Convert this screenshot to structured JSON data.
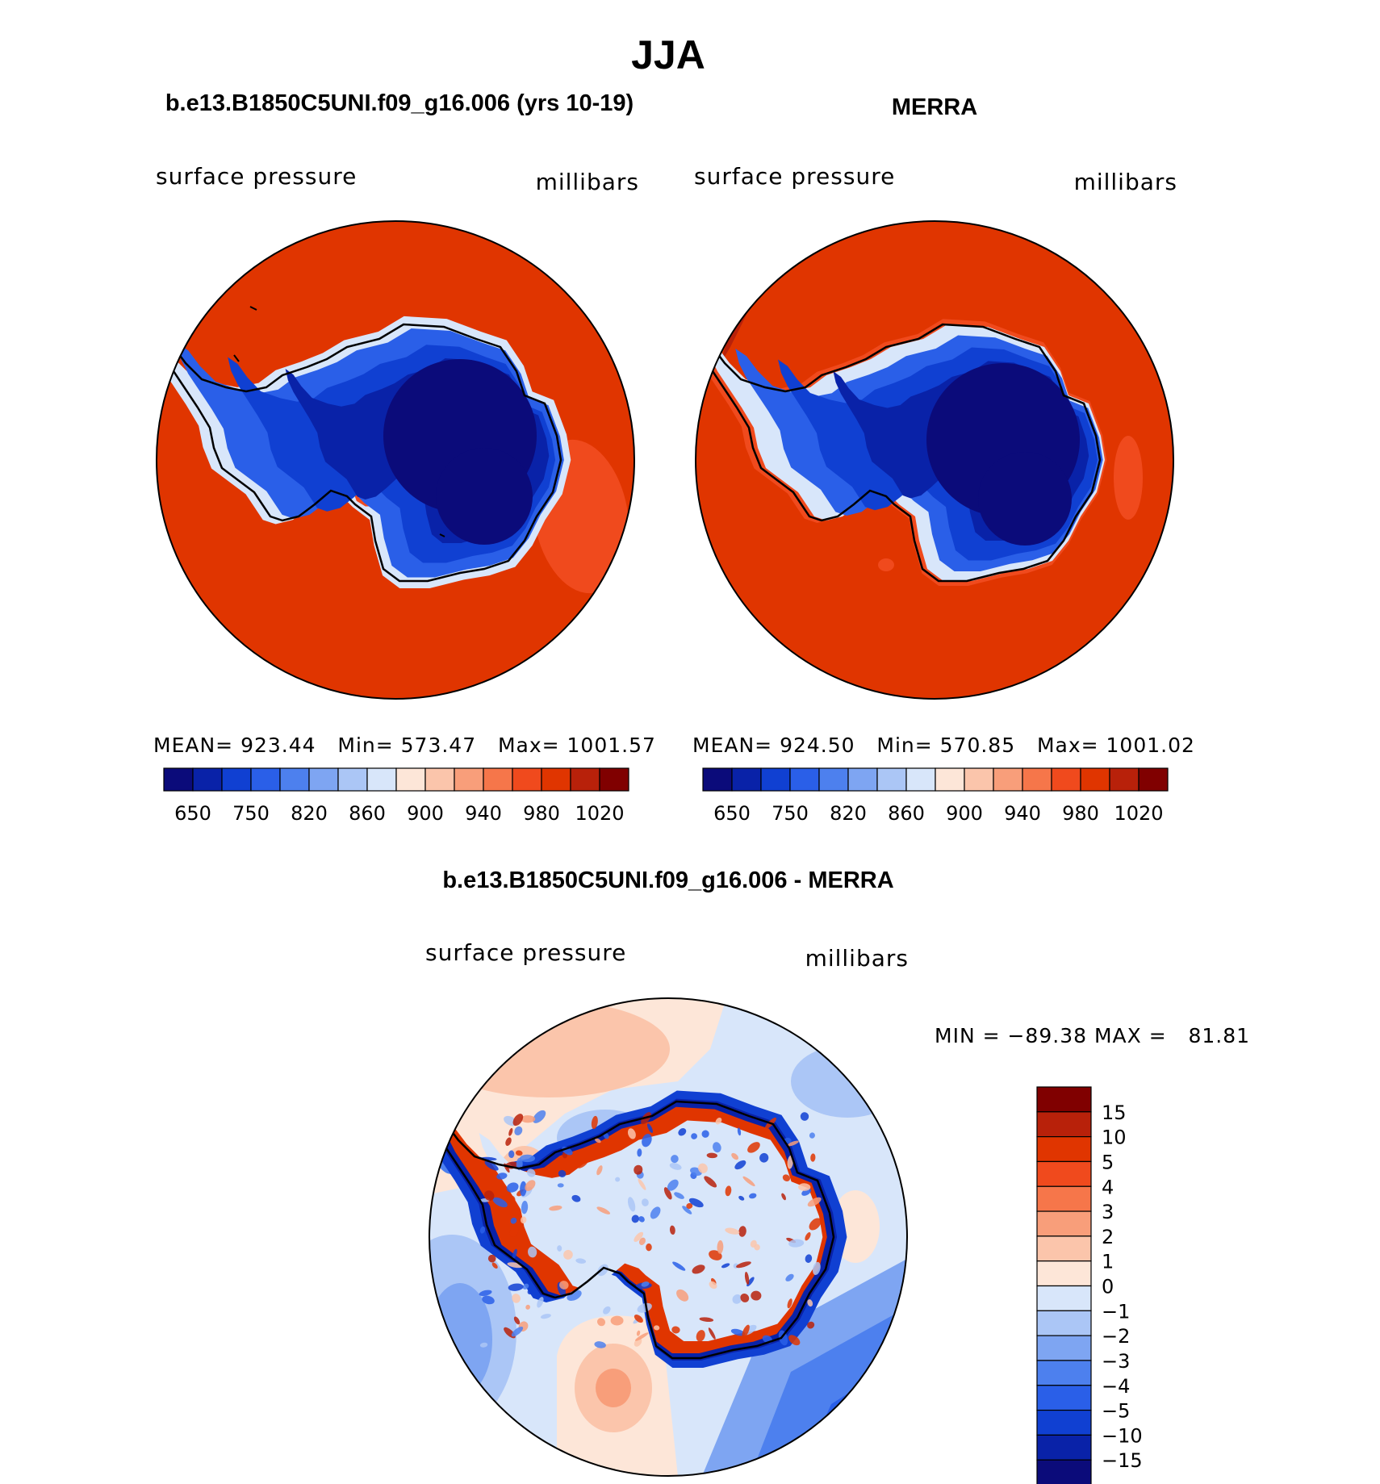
{
  "figure": {
    "title": "JJA",
    "colors": {
      "land_outline": "#000000",
      "background": "#ffffff"
    }
  },
  "panels": [
    {
      "id": "model",
      "title": "b.e13.B1850C5UNI.f09_g16.006 (yrs 10-19)",
      "left_label": "surface pressure",
      "right_label": "millibars",
      "stats": "MEAN= 923.44   Min= 573.47   Max= 1001.57",
      "ocean_color": "#e03500",
      "features": "ocean-high-anomaly-east"
    },
    {
      "id": "obs",
      "title": "MERRA",
      "left_label": "surface pressure",
      "right_label": "millibars",
      "stats": "MEAN= 924.50   Min= 570.85   Max= 1001.02",
      "ocean_color": "#e03500",
      "features": "small-east-anomaly"
    },
    {
      "id": "diff",
      "title": "b.e13.B1850C5UNI.f09_g16.006 - MERRA",
      "left_label": "surface pressure",
      "right_label": "millibars",
      "stats": "MIN = −89.38 MAX =   81.81"
    }
  ],
  "chart_data": [
    {
      "type": "heatmap",
      "title": "surface pressure",
      "units": "millibars",
      "projection": "south polar stereographic",
      "panel_title": "b.e13.B1850C5UNI.f09_g16.006 (yrs 10-19)",
      "mean": 923.44,
      "min": 573.47,
      "max": 1001.57,
      "colorbar": {
        "orientation": "horizontal",
        "levels": [
          650,
          700,
          750,
          780,
          820,
          840,
          860,
          880,
          900,
          920,
          940,
          960,
          980,
          1000,
          1020
        ],
        "tick_labels": [
          "650",
          "750",
          "820",
          "860",
          "900",
          "940",
          "980",
          "1020"
        ],
        "colors": [
          "#0b0b7a",
          "#0922a8",
          "#1040d2",
          "#2a5fe8",
          "#4d80ee",
          "#7ea5f2",
          "#abc6f6",
          "#d8e6fa",
          "#fde6d8",
          "#fbc5ab",
          "#f89e7a",
          "#f6764a",
          "#f04a1d",
          "#e03500",
          "#b8210a",
          "#800000"
        ]
      }
    },
    {
      "type": "heatmap",
      "title": "surface pressure",
      "units": "millibars",
      "projection": "south polar stereographic",
      "panel_title": "MERRA",
      "mean": 924.5,
      "min": 570.85,
      "max": 1001.02,
      "colorbar": {
        "orientation": "horizontal",
        "levels": [
          650,
          700,
          750,
          780,
          820,
          840,
          860,
          880,
          900,
          920,
          940,
          960,
          980,
          1000,
          1020
        ],
        "tick_labels": [
          "650",
          "750",
          "820",
          "860",
          "900",
          "940",
          "980",
          "1020"
        ],
        "colors": [
          "#0b0b7a",
          "#0922a8",
          "#1040d2",
          "#2a5fe8",
          "#4d80ee",
          "#7ea5f2",
          "#abc6f6",
          "#d8e6fa",
          "#fde6d8",
          "#fbc5ab",
          "#f89e7a",
          "#f6764a",
          "#f04a1d",
          "#e03500",
          "#b8210a",
          "#800000"
        ]
      }
    },
    {
      "type": "heatmap",
      "title": "surface pressure",
      "units": "millibars",
      "projection": "south polar stereographic",
      "panel_title": "b.e13.B1850C5UNI.f09_g16.006 - MERRA",
      "min": -89.38,
      "max": 81.81,
      "colorbar": {
        "orientation": "vertical",
        "levels": [
          -15,
          -10,
          -5,
          -4,
          -3,
          -2,
          -1,
          0,
          1,
          2,
          3,
          4,
          5,
          10,
          15
        ],
        "tick_labels": [
          "15",
          "10",
          "5",
          "4",
          "3",
          "2",
          "1",
          "0",
          "−1",
          "−2",
          "−3",
          "−4",
          "−5",
          "−10",
          "−15"
        ],
        "colors": [
          "#0b0b7a",
          "#0922a8",
          "#1040d2",
          "#2a5fe8",
          "#4d80ee",
          "#7ea5f2",
          "#abc6f6",
          "#d8e6fa",
          "#fde6d8",
          "#fbc5ab",
          "#f89e7a",
          "#f6764a",
          "#f04a1d",
          "#e03500",
          "#b8210a",
          "#800000"
        ]
      }
    }
  ]
}
